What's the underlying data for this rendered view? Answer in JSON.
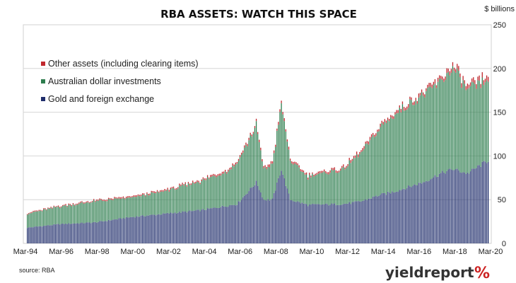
{
  "chart_data": {
    "type": "bar",
    "stacked": true,
    "title": "RBA ASSETS: WATCH THIS SPACE",
    "y_unit_label": "$ billions",
    "ylim": [
      0,
      250
    ],
    "y_ticks": [
      0,
      50,
      100,
      150,
      200,
      250
    ],
    "grid": true,
    "y_axis_position": "right",
    "legend_position": "top-left",
    "x_tick_labels": [
      "Mar-94",
      "Mar-96",
      "Mar-98",
      "Mar-00",
      "Mar-02",
      "Mar-04",
      "Mar-06",
      "Mar-08",
      "Mar-10",
      "Mar-12",
      "Mar-14",
      "Mar-16",
      "Mar-18",
      "Mar-20"
    ],
    "source": "source: RBA",
    "series": [
      {
        "name": "Other assets (including clearing items)",
        "color": "#c0272d",
        "keypoints": [
          [
            1994.17,
            1
          ],
          [
            2000,
            1.5
          ],
          [
            2006,
            2
          ],
          [
            2008.5,
            3
          ],
          [
            2010,
            2
          ],
          [
            2014,
            3
          ],
          [
            2017,
            4
          ],
          [
            2019,
            5
          ],
          [
            2020.17,
            5
          ]
        ]
      },
      {
        "name": "Australian dollar investments",
        "color": "#2e7d4e",
        "keypoints": [
          [
            1994.17,
            16
          ],
          [
            1996,
            20
          ],
          [
            1998,
            24
          ],
          [
            2000,
            22
          ],
          [
            2002,
            26
          ],
          [
            2004,
            33
          ],
          [
            2005.5,
            40
          ],
          [
            2006.5,
            55
          ],
          [
            2007.1,
            65
          ],
          [
            2007.5,
            35
          ],
          [
            2008,
            40
          ],
          [
            2008.5,
            75
          ],
          [
            2009,
            45
          ],
          [
            2010,
            32
          ],
          [
            2012,
            40
          ],
          [
            2013,
            55
          ],
          [
            2014,
            75
          ],
          [
            2015,
            90
          ],
          [
            2016.5,
            100
          ],
          [
            2017.5,
            105
          ],
          [
            2018.2,
            115
          ],
          [
            2019,
            95
          ],
          [
            2020.17,
            90
          ]
        ]
      },
      {
        "name": "Gold and foreign exchange",
        "color": "#1f2d6b",
        "keypoints": [
          [
            1994.17,
            18
          ],
          [
            1996,
            22
          ],
          [
            1998,
            24
          ],
          [
            2000,
            30
          ],
          [
            2002,
            34
          ],
          [
            2004,
            38
          ],
          [
            2006,
            45
          ],
          [
            2007.1,
            70
          ],
          [
            2007.5,
            50
          ],
          [
            2008,
            50
          ],
          [
            2008.5,
            85
          ],
          [
            2009,
            50
          ],
          [
            2010,
            44
          ],
          [
            2012,
            45
          ],
          [
            2013,
            48
          ],
          [
            2014,
            55
          ],
          [
            2015,
            60
          ],
          [
            2016.5,
            70
          ],
          [
            2017.5,
            80
          ],
          [
            2018.2,
            85
          ],
          [
            2019,
            80
          ],
          [
            2020.17,
            95
          ]
        ]
      }
    ]
  },
  "logo": {
    "text": "yieldreport",
    "symbol": "%"
  }
}
